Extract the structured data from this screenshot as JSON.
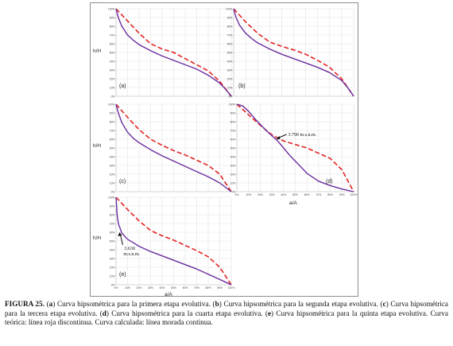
{
  "figure": {
    "ylabel": "h/H",
    "xlabel": "a/A",
    "y_ticks": [
      "0%",
      "10%",
      "20%",
      "30%",
      "40%",
      "50%",
      "60%",
      "70%",
      "80%",
      "90%",
      "100%"
    ],
    "x_ticks": [
      "0%",
      "10%",
      "20%",
      "30%",
      "40%",
      "50%",
      "60%",
      "70%",
      "80%",
      "90%",
      "100%"
    ],
    "colors": {
      "theoretical": "#e32222",
      "calculated": "#6a2c9e",
      "grid": "#e3e3e3",
      "annotation": "#111111"
    }
  },
  "chart_data": [
    {
      "type": "line",
      "panel_label": "(a)",
      "ylabel": "h/H",
      "xlim": [
        0,
        1
      ],
      "ylim": [
        0,
        1
      ],
      "series": [
        {
          "style": "dashed",
          "color": "#e32222",
          "x": [
            0,
            0.1,
            0.2,
            0.3,
            0.4,
            0.5,
            0.6,
            0.7,
            0.8,
            0.9,
            1.0
          ],
          "y": [
            1.0,
            0.86,
            0.72,
            0.6,
            0.54,
            0.5,
            0.43,
            0.36,
            0.29,
            0.17,
            0.0
          ]
        },
        {
          "style": "solid",
          "color": "#6a2c9e",
          "x": [
            0,
            0.02,
            0.05,
            0.1,
            0.15,
            0.2,
            0.3,
            0.4,
            0.5,
            0.6,
            0.7,
            0.8,
            0.9,
            0.95,
            1.0
          ],
          "y": [
            1.0,
            0.9,
            0.8,
            0.7,
            0.64,
            0.59,
            0.52,
            0.46,
            0.41,
            0.36,
            0.31,
            0.24,
            0.15,
            0.08,
            0.0
          ]
        }
      ]
    },
    {
      "type": "line",
      "panel_label": "(b)",
      "xlim": [
        0,
        1
      ],
      "ylim": [
        0,
        1
      ],
      "series": [
        {
          "style": "dashed",
          "color": "#e32222",
          "x": [
            0,
            0.1,
            0.2,
            0.3,
            0.4,
            0.5,
            0.6,
            0.7,
            0.8,
            0.9,
            1.0
          ],
          "y": [
            1.0,
            0.85,
            0.72,
            0.62,
            0.57,
            0.53,
            0.48,
            0.41,
            0.33,
            0.2,
            0.0
          ]
        },
        {
          "style": "solid",
          "color": "#6a2c9e",
          "x": [
            0,
            0.02,
            0.05,
            0.1,
            0.15,
            0.2,
            0.3,
            0.4,
            0.5,
            0.6,
            0.7,
            0.8,
            0.9,
            0.95,
            1.0
          ],
          "y": [
            1.0,
            0.9,
            0.81,
            0.72,
            0.66,
            0.61,
            0.54,
            0.48,
            0.43,
            0.38,
            0.33,
            0.27,
            0.18,
            0.1,
            0.0
          ]
        }
      ]
    },
    {
      "type": "line",
      "panel_label": "(c)",
      "ylabel": "h/H",
      "xlim": [
        0,
        1
      ],
      "ylim": [
        0,
        1
      ],
      "series": [
        {
          "style": "dashed",
          "color": "#e32222",
          "x": [
            0,
            0.1,
            0.2,
            0.3,
            0.4,
            0.5,
            0.6,
            0.7,
            0.8,
            0.9,
            1.0
          ],
          "y": [
            1.0,
            0.85,
            0.71,
            0.6,
            0.53,
            0.47,
            0.42,
            0.36,
            0.3,
            0.2,
            0.0
          ]
        },
        {
          "style": "solid",
          "color": "#6a2c9e",
          "x": [
            0,
            0.02,
            0.05,
            0.1,
            0.15,
            0.2,
            0.3,
            0.4,
            0.5,
            0.6,
            0.7,
            0.8,
            0.9,
            0.95,
            1.0
          ],
          "y": [
            1.0,
            0.9,
            0.79,
            0.68,
            0.61,
            0.56,
            0.48,
            0.41,
            0.35,
            0.29,
            0.23,
            0.17,
            0.1,
            0.05,
            0.0
          ]
        }
      ]
    },
    {
      "type": "line",
      "panel_label": "(d)",
      "xlabel": "a/A",
      "xlim": [
        0,
        1
      ],
      "ylim": [
        0,
        1
      ],
      "annotation": {
        "text": "3.790 m.s.n.m.",
        "x": 0.33,
        "y": 0.6
      },
      "series": [
        {
          "style": "dashed",
          "color": "#e32222",
          "x": [
            0,
            0.1,
            0.2,
            0.3,
            0.4,
            0.5,
            0.6,
            0.7,
            0.8,
            0.9,
            1.0
          ],
          "y": [
            1.0,
            0.88,
            0.76,
            0.65,
            0.58,
            0.54,
            0.5,
            0.44,
            0.38,
            0.25,
            0.0
          ]
        },
        {
          "style": "solid",
          "color": "#6a2c9e",
          "x": [
            0,
            0.05,
            0.1,
            0.15,
            0.2,
            0.25,
            0.3,
            0.35,
            0.4,
            0.45,
            0.5,
            0.55,
            0.6,
            0.7,
            0.8,
            0.9,
            1.0
          ],
          "y": [
            1.0,
            0.98,
            0.92,
            0.84,
            0.77,
            0.7,
            0.64,
            0.58,
            0.5,
            0.42,
            0.35,
            0.28,
            0.21,
            0.12,
            0.07,
            0.03,
            0.0
          ]
        }
      ]
    },
    {
      "type": "line",
      "panel_label": "(e)",
      "ylabel": "h/H",
      "xlabel": "a/A",
      "xlim": [
        0,
        1
      ],
      "ylim": [
        0,
        1
      ],
      "annotation": {
        "text": "3.630 m.s.n.m.",
        "x": 0.03,
        "y": 0.6
      },
      "series": [
        {
          "style": "dashed",
          "color": "#e32222",
          "x": [
            0,
            0.1,
            0.2,
            0.3,
            0.4,
            0.5,
            0.6,
            0.7,
            0.8,
            0.9,
            1.0
          ],
          "y": [
            1.0,
            0.86,
            0.73,
            0.62,
            0.56,
            0.51,
            0.45,
            0.39,
            0.32,
            0.2,
            0.0
          ]
        },
        {
          "style": "solid",
          "color": "#6a2c9e",
          "x": [
            0,
            0.01,
            0.02,
            0.05,
            0.1,
            0.15,
            0.2,
            0.3,
            0.4,
            0.5,
            0.6,
            0.7,
            0.8,
            0.9,
            0.95,
            1.0
          ],
          "y": [
            1.0,
            0.8,
            0.7,
            0.59,
            0.52,
            0.48,
            0.44,
            0.38,
            0.33,
            0.28,
            0.23,
            0.18,
            0.12,
            0.06,
            0.03,
            0.0
          ]
        }
      ]
    }
  ],
  "caption": {
    "segments": [
      {
        "text": "FIGURA 25.",
        "bold": true
      },
      {
        "text": " (",
        "bold": false
      },
      {
        "text": "a",
        "bold": true
      },
      {
        "text": ") Curva hipsométrica para la primera etapa evolutiva. (",
        "bold": false
      },
      {
        "text": "b",
        "bold": true
      },
      {
        "text": ") Curva hipsométrica para la segunda etapa evolutiva. (",
        "bold": false
      },
      {
        "text": "c",
        "bold": true
      },
      {
        "text": ") Curva hipsométrica para la tercera etapa evolutiva. (",
        "bold": false
      },
      {
        "text": "d",
        "bold": true
      },
      {
        "text": ") Curva hipsométrica para la cuarta etapa evolutiva. (",
        "bold": false
      },
      {
        "text": "e",
        "bold": true
      },
      {
        "text": ") Curva hipsométrica para la quinta etapa evolutiva. Curva teórica: línea roja discontinua. Curva calculada: línea morada continua.",
        "bold": false
      }
    ]
  }
}
